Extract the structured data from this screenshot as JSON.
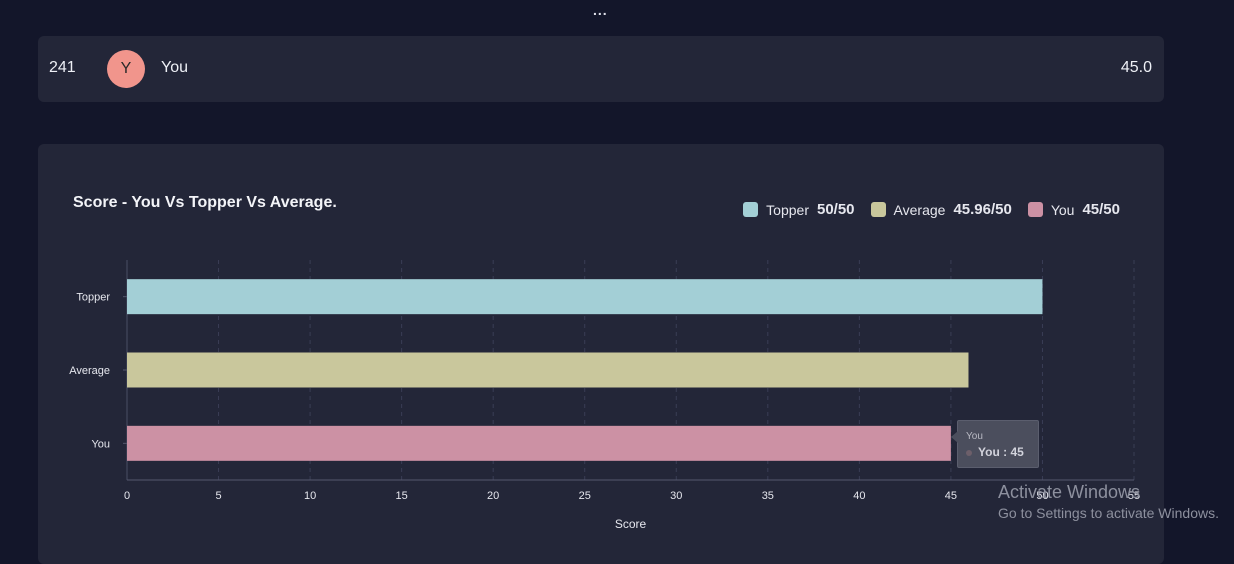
{
  "header": {
    "ellipsis": "..."
  },
  "rank_row": {
    "rank": "241",
    "avatar_letter": "Y",
    "name": "You",
    "score": "45.0"
  },
  "chart": {
    "title": "Score - You Vs Topper Vs Average.",
    "legend": [
      {
        "label": "Topper",
        "value": "50/50",
        "color": "#a3cfd6"
      },
      {
        "label": "Average",
        "value": "45.96/50",
        "color": "#c9c79c"
      },
      {
        "label": "You",
        "value": "45/50",
        "color": "#cc91a4"
      }
    ]
  },
  "chart_data": {
    "type": "bar",
    "orientation": "horizontal",
    "title": "Score - You Vs Topper Vs Average.",
    "categories": [
      "Topper",
      "Average",
      "You"
    ],
    "values": [
      50,
      45.96,
      45
    ],
    "colors": [
      "#a3cfd6",
      "#c9c79c",
      "#cc91a4"
    ],
    "xlabel": "Score",
    "ylabel": "",
    "xlim": [
      0,
      55
    ],
    "xticks": [
      0,
      5,
      10,
      15,
      20,
      25,
      30,
      35,
      40,
      45,
      50,
      55
    ],
    "grid": true,
    "legend_position": "top-right"
  },
  "tooltip": {
    "title": "You",
    "text": "You : 45"
  },
  "watermark": {
    "title": "Activate Windows",
    "subtitle": "Go to Settings to activate Windows."
  }
}
